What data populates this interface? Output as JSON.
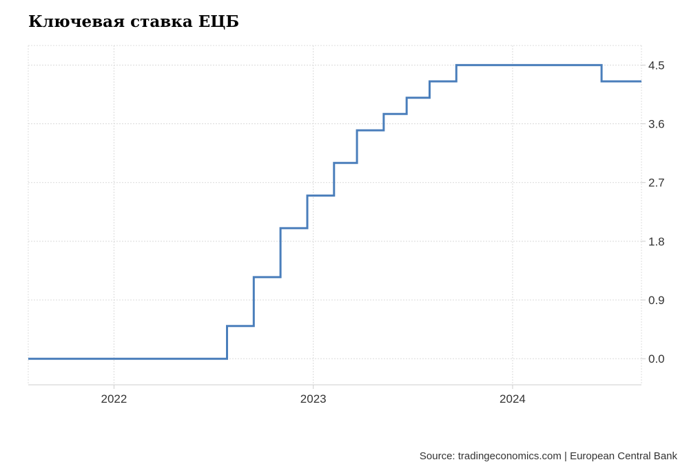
{
  "chart_data": {
    "type": "line",
    "title": "Ключевая ставка ЕЦБ",
    "xlabel": "",
    "ylabel": "",
    "y_axis_position": "right",
    "x_tick_labels": [
      "2022",
      "2023",
      "2024"
    ],
    "y_tick_labels": [
      "0.0",
      "0.9",
      "1.8",
      "2.7",
      "3.6",
      "4.5"
    ],
    "y_ticks": [
      0,
      0.9,
      1.8,
      2.7,
      3.6,
      4.5
    ],
    "ylim": [
      -0.4,
      4.8
    ],
    "xlim": [
      "2021-07-28",
      "2024-08-24"
    ],
    "grid": true,
    "line_color": "#4a7ebb",
    "step": true,
    "series": [
      {
        "x": [
          "2021-07-28",
          "2022-07-27",
          "2022-09-14",
          "2022-11-02",
          "2022-12-21",
          "2023-02-08",
          "2023-03-22",
          "2023-05-10",
          "2023-06-21",
          "2023-08-02",
          "2023-09-20",
          "2024-06-12",
          "2024-08-24"
        ],
        "values": [
          0,
          0.5,
          1.25,
          2.0,
          2.5,
          3.0,
          3.5,
          3.75,
          4.0,
          4.25,
          4.5,
          4.25,
          4.25
        ]
      }
    ],
    "source": "Source: tradingeconomics.com | European Central Bank"
  }
}
